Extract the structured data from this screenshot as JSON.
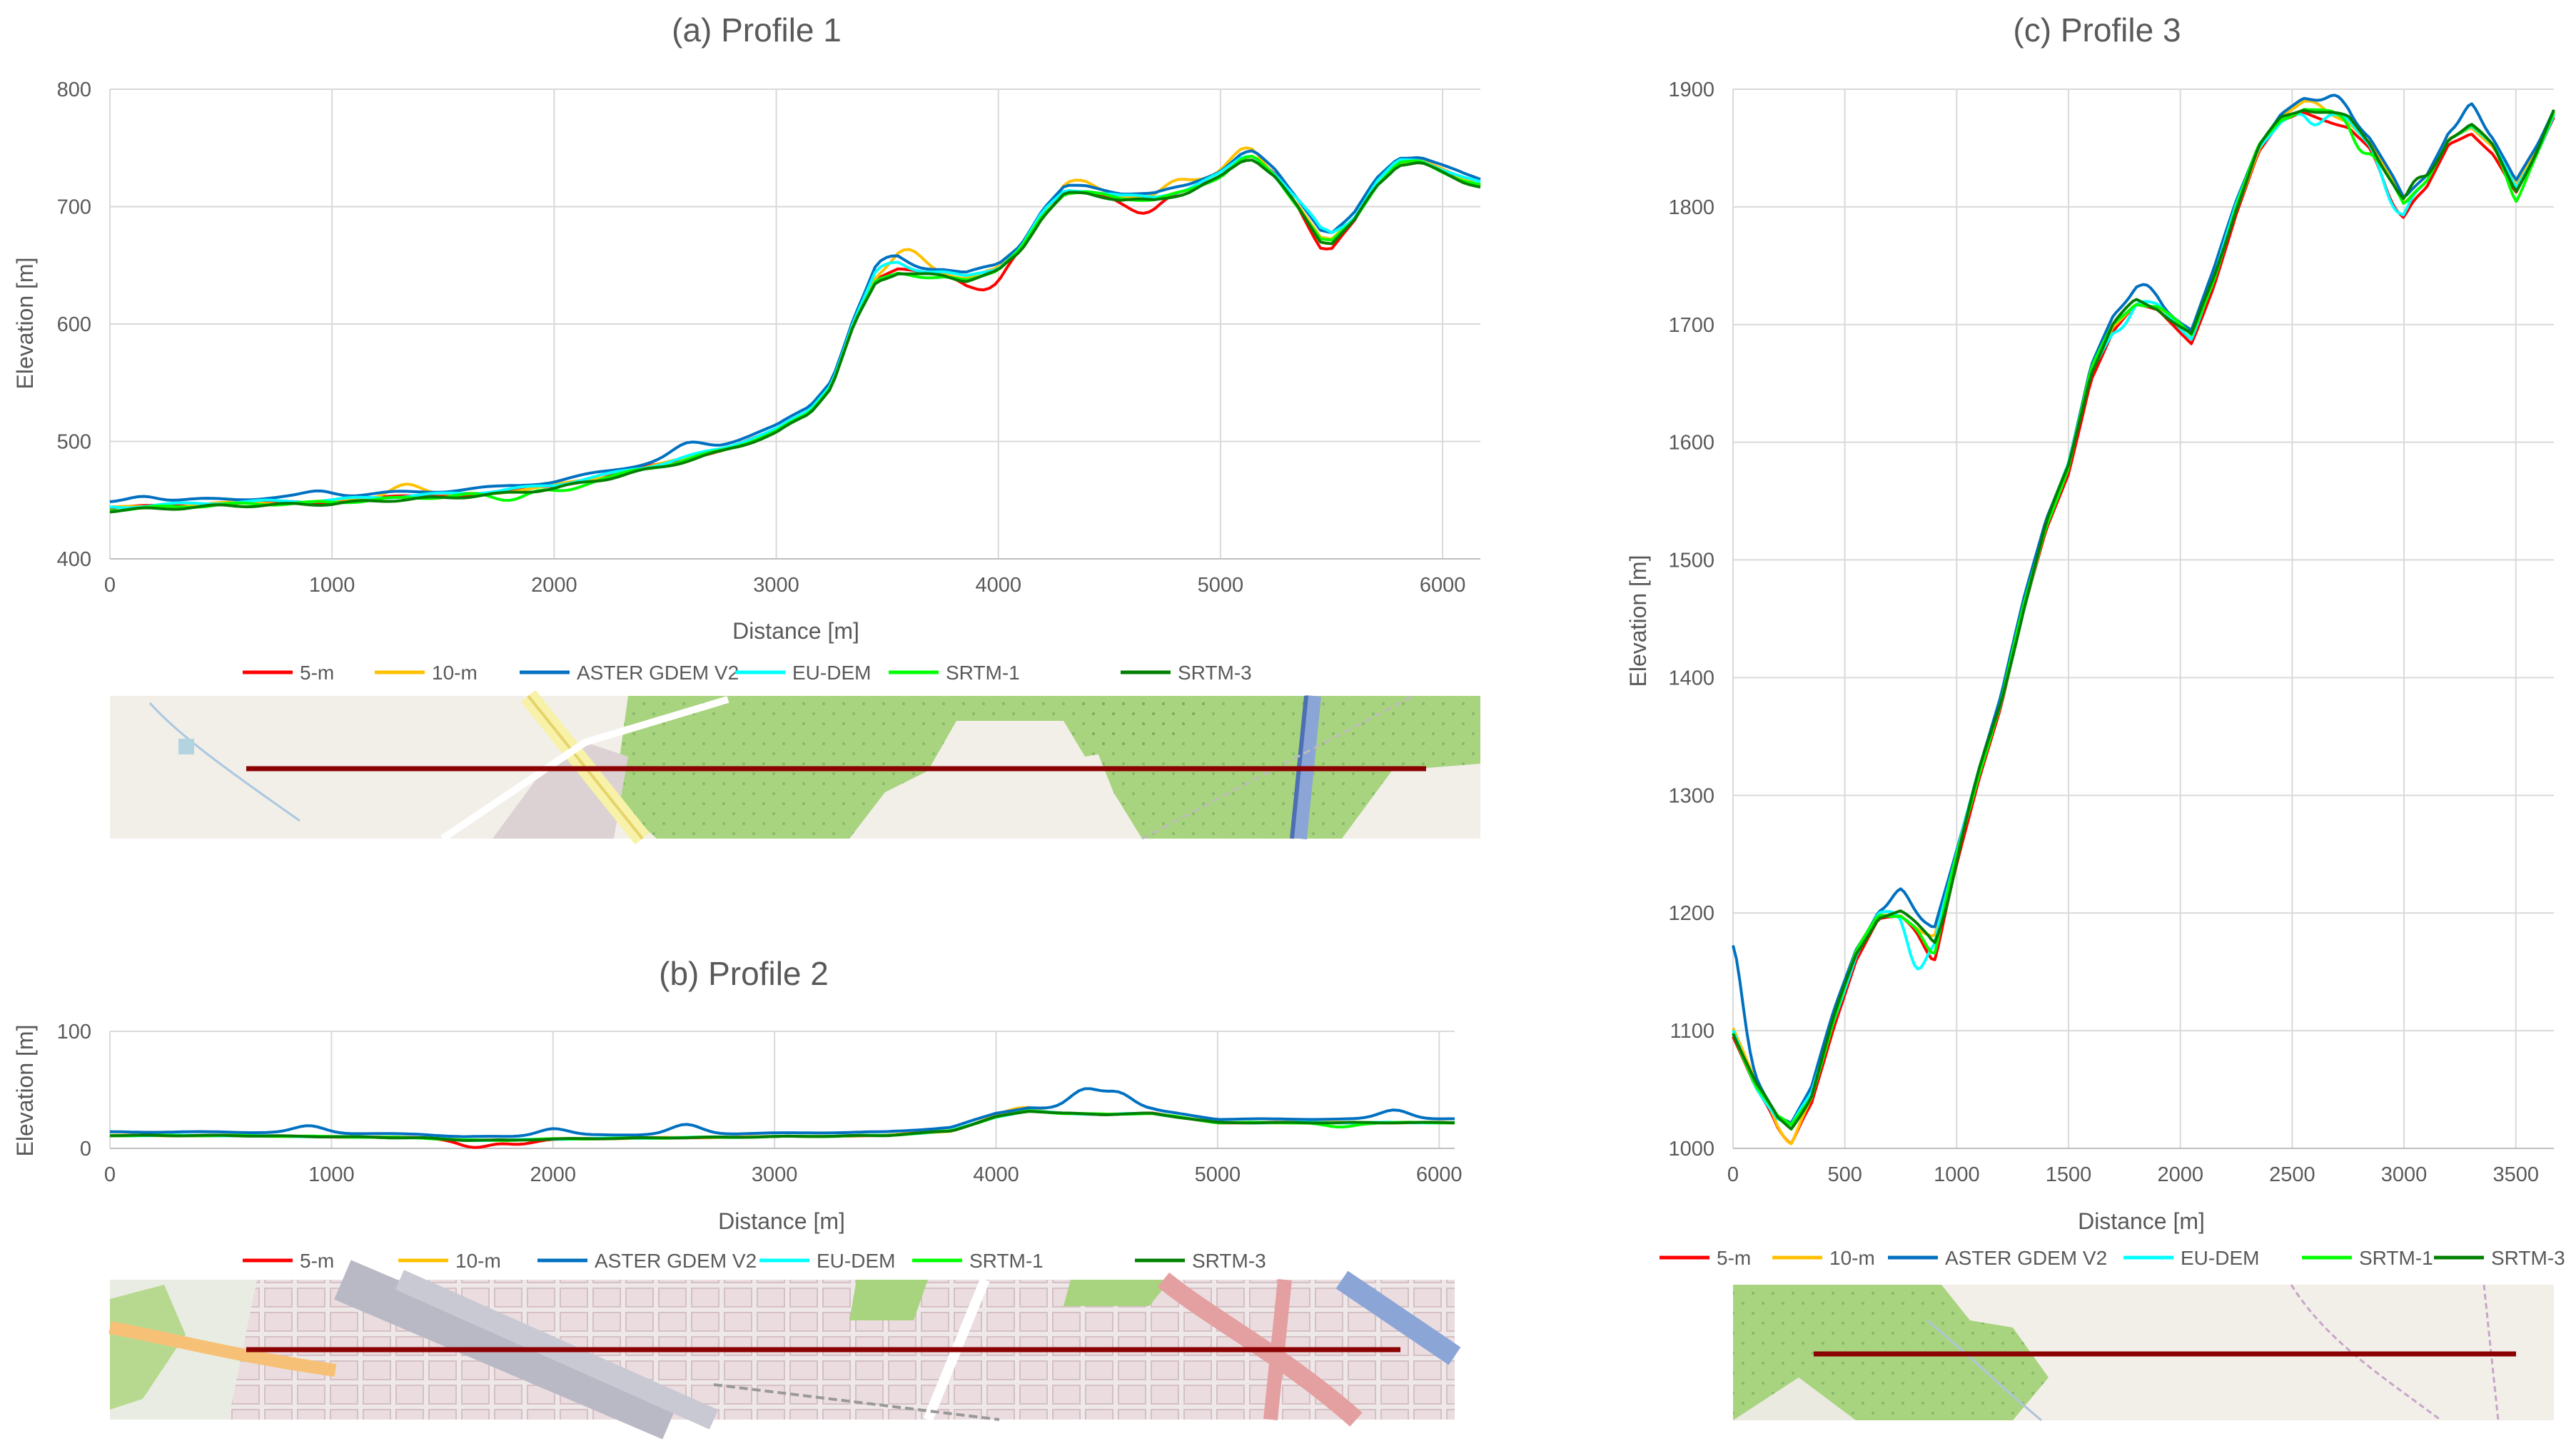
{
  "legend": {
    "series": [
      "5-m",
      "10-m",
      "ASTER GDEM V2",
      "EU-DEM",
      "SRTM-1",
      "SRTM-3"
    ],
    "colors": [
      "#ff0000",
      "#ffc000",
      "#0070c0",
      "#00ffff",
      "#00ff00",
      "#008000"
    ]
  },
  "chart_data": [
    {
      "type": "line",
      "title": "(a) Profile 1",
      "xlabel": "Distance [m]",
      "ylabel": "Elevation [m]",
      "xlim": [
        0,
        6170
      ],
      "ylim": [
        400,
        800
      ],
      "xticks": [
        0,
        1000,
        2000,
        3000,
        4000,
        5000,
        6000
      ],
      "yticks": [
        400,
        500,
        600,
        700,
        800
      ],
      "grid": true,
      "legend_position": "bottom",
      "base": [
        [
          0,
          442
        ],
        [
          250,
          444
        ],
        [
          500,
          446
        ],
        [
          750,
          447
        ],
        [
          1000,
          448
        ],
        [
          1250,
          451
        ],
        [
          1500,
          453
        ],
        [
          1750,
          456
        ],
        [
          2000,
          461
        ],
        [
          2250,
          470
        ],
        [
          2500,
          480
        ],
        [
          2750,
          492
        ],
        [
          3000,
          508
        ],
        [
          3150,
          525
        ],
        [
          3250,
          548
        ],
        [
          3350,
          600
        ],
        [
          3450,
          637
        ],
        [
          3550,
          645
        ],
        [
          3650,
          643
        ],
        [
          3750,
          642
        ],
        [
          3850,
          638
        ],
        [
          4000,
          646
        ],
        [
          4100,
          663
        ],
        [
          4200,
          693
        ],
        [
          4300,
          712
        ],
        [
          4400,
          712
        ],
        [
          4550,
          707
        ],
        [
          4700,
          706
        ],
        [
          4850,
          713
        ],
        [
          5000,
          726
        ],
        [
          5100,
          741
        ],
        [
          5150,
          742
        ],
        [
          5250,
          725
        ],
        [
          5350,
          700
        ],
        [
          5450,
          672
        ],
        [
          5500,
          670
        ],
        [
          5600,
          688
        ],
        [
          5700,
          718
        ],
        [
          5800,
          737
        ],
        [
          5900,
          738
        ],
        [
          6000,
          730
        ],
        [
          6100,
          722
        ],
        [
          6170,
          718
        ]
      ],
      "series": [
        {
          "name": "5-m",
          "color": "#ff0000",
          "offset": 1,
          "wiggle": [
            [
              3950,
              -14
            ],
            [
              4650,
              -14
            ],
            [
              5450,
              -8
            ]
          ]
        },
        {
          "name": "10-m",
          "color": "#ffc000",
          "offset": 1,
          "wiggle": [
            [
              1330,
              12
            ],
            [
              3600,
              18
            ],
            [
              4350,
              10
            ],
            [
              4800,
              12
            ],
            [
              5100,
              8
            ]
          ]
        },
        {
          "name": "ASTER GDEM V2",
          "color": "#0070c0",
          "offset": 5,
          "wiggle": [
            [
              150,
              6
            ],
            [
              950,
              5
            ],
            [
              2600,
              8
            ],
            [
              3500,
              10
            ],
            [
              5450,
              4
            ]
          ]
        },
        {
          "name": "EU-DEM",
          "color": "#00ffff",
          "offset": 2,
          "wiggle": [
            [
              3500,
              8
            ],
            [
              5450,
              8
            ]
          ]
        },
        {
          "name": "SRTM-1",
          "color": "#00ff00",
          "offset": 0,
          "wiggle": [
            [
              1800,
              -6
            ],
            [
              2050,
              -5
            ],
            [
              3700,
              -4
            ]
          ]
        },
        {
          "name": "SRTM-3",
          "color": "#008000",
          "offset": -1,
          "wiggle": []
        }
      ]
    },
    {
      "type": "line",
      "title": "(b) Profile 2",
      "xlabel": "Distance [m]",
      "ylabel": "Elevation [m]",
      "xlim": [
        0,
        6070
      ],
      "ylim": [
        0,
        100
      ],
      "xticks": [
        0,
        1000,
        2000,
        3000,
        4000,
        5000,
        6000
      ],
      "yticks": [
        0,
        100
      ],
      "grid": true,
      "legend_position": "bottom",
      "base": [
        [
          0,
          11
        ],
        [
          500,
          11
        ],
        [
          1000,
          10
        ],
        [
          1400,
          9
        ],
        [
          1600,
          7
        ],
        [
          1800,
          7
        ],
        [
          2000,
          8
        ],
        [
          2500,
          9
        ],
        [
          3000,
          10
        ],
        [
          3500,
          11
        ],
        [
          3800,
          15
        ],
        [
          4000,
          27
        ],
        [
          4150,
          32
        ],
        [
          4300,
          30
        ],
        [
          4500,
          29
        ],
        [
          4700,
          30
        ],
        [
          5000,
          22
        ],
        [
          5300,
          22
        ],
        [
          5600,
          22
        ],
        [
          5900,
          22
        ],
        [
          6070,
          22
        ]
      ],
      "series": [
        {
          "name": "5-m",
          "color": "#ff0000",
          "offset": 0,
          "wiggle": [
            [
              1650,
              -6
            ],
            [
              1850,
              -4
            ]
          ]
        },
        {
          "name": "10-m",
          "color": "#ffc000",
          "offset": 0,
          "wiggle": [
            [
              4100,
              4
            ]
          ]
        },
        {
          "name": "ASTER GDEM V2",
          "color": "#0070c0",
          "offset": 3,
          "wiggle": [
            [
              900,
              6
            ],
            [
              2000,
              6
            ],
            [
              2600,
              8
            ],
            [
              4400,
              17
            ],
            [
              4550,
              15
            ],
            [
              5800,
              8
            ]
          ]
        },
        {
          "name": "EU-DEM",
          "color": "#00ffff",
          "offset": 0,
          "wiggle": []
        },
        {
          "name": "SRTM-1",
          "color": "#00ff00",
          "offset": 0,
          "wiggle": [
            [
              5550,
              -4
            ]
          ]
        },
        {
          "name": "SRTM-3",
          "color": "#008000",
          "offset": 0,
          "wiggle": []
        }
      ]
    },
    {
      "type": "line",
      "title": "(c) Profile 3",
      "xlabel": "Distance [m]",
      "ylabel": "Elevation [m]",
      "xlim": [
        0,
        3670
      ],
      "ylim": [
        1000,
        1900
      ],
      "xticks": [
        0,
        500,
        1000,
        1500,
        2000,
        2500,
        3000,
        3500
      ],
      "yticks": [
        1000,
        1100,
        1200,
        1300,
        1400,
        1500,
        1600,
        1700,
        1800,
        1900
      ],
      "grid": true,
      "legend_position": "bottom",
      "base": [
        [
          0,
          1100
        ],
        [
          100,
          1055
        ],
        [
          200,
          1025
        ],
        [
          260,
          1018
        ],
        [
          350,
          1045
        ],
        [
          450,
          1110
        ],
        [
          550,
          1165
        ],
        [
          650,
          1198
        ],
        [
          750,
          1200
        ],
        [
          850,
          1185
        ],
        [
          900,
          1180
        ],
        [
          1000,
          1250
        ],
        [
          1100,
          1320
        ],
        [
          1200,
          1380
        ],
        [
          1300,
          1460
        ],
        [
          1400,
          1530
        ],
        [
          1500,
          1580
        ],
        [
          1600,
          1660
        ],
        [
          1700,
          1700
        ],
        [
          1800,
          1720
        ],
        [
          1900,
          1715
        ],
        [
          2000,
          1698
        ],
        [
          2050,
          1690
        ],
        [
          2150,
          1740
        ],
        [
          2250,
          1800
        ],
        [
          2350,
          1850
        ],
        [
          2450,
          1875
        ],
        [
          2550,
          1885
        ],
        [
          2650,
          1880
        ],
        [
          2750,
          1875
        ],
        [
          2850,
          1855
        ],
        [
          2950,
          1820
        ],
        [
          3000,
          1800
        ],
        [
          3100,
          1820
        ],
        [
          3200,
          1860
        ],
        [
          3300,
          1870
        ],
        [
          3400,
          1850
        ],
        [
          3500,
          1815
        ],
        [
          3600,
          1850
        ],
        [
          3670,
          1880
        ]
      ],
      "series": [
        {
          "name": "5-m",
          "color": "#ff0000",
          "offset": -5,
          "wiggle": [
            [
              250,
              -10
            ],
            [
              900,
              -15
            ],
            [
              2950,
              -15
            ]
          ]
        },
        {
          "name": "10-m",
          "color": "#ffc000",
          "offset": 0,
          "wiggle": [
            [
              250,
              -12
            ],
            [
              2600,
              5
            ]
          ]
        },
        {
          "name": "ASTER GDEM V2",
          "color": "#0070c0",
          "offset": 5,
          "wiggle": [
            [
              0,
              65
            ],
            [
              750,
              15
            ],
            [
              1850,
              12
            ],
            [
              2700,
              12
            ],
            [
              3300,
              15
            ]
          ]
        },
        {
          "name": "EU-DEM",
          "color": "#00ffff",
          "offset": 0,
          "wiggle": [
            [
              820,
              -35
            ],
            [
              1750,
              -10
            ],
            [
              2600,
              -15
            ],
            [
              2950,
              -20
            ]
          ]
        },
        {
          "name": "SRTM-1",
          "color": "#00ff00",
          "offset": 0,
          "wiggle": [
            [
              900,
              -18
            ],
            [
              2800,
              -15
            ],
            [
              3500,
              -10
            ]
          ]
        },
        {
          "name": "SRTM-3",
          "color": "#008000",
          "offset": 0,
          "wiggle": [
            [
              950,
              -10
            ],
            [
              3050,
              10
            ]
          ]
        }
      ]
    }
  ]
}
